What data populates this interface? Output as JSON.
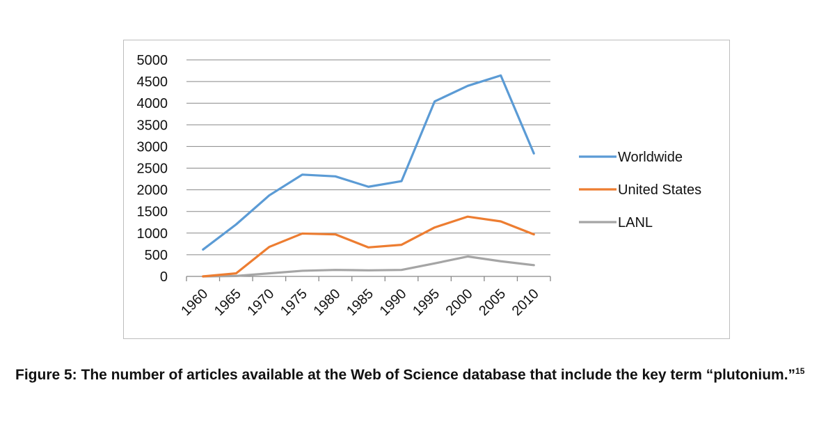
{
  "chart_data": {
    "type": "line",
    "categories": [
      "1960",
      "1965",
      "1970",
      "1975",
      "1980",
      "1985",
      "1990",
      "1995",
      "2000",
      "2005",
      "2010"
    ],
    "series": [
      {
        "name": "Worldwide",
        "color": "#5b9bd5",
        "values": [
          620,
          1200,
          1870,
          2350,
          2310,
          2070,
          2200,
          4040,
          4400,
          4640,
          2840
        ]
      },
      {
        "name": "United States",
        "color": "#ed7d31",
        "values": [
          0,
          70,
          680,
          990,
          970,
          670,
          730,
          1130,
          1380,
          1270,
          970
        ]
      },
      {
        "name": "LANL",
        "color": "#a5a5a5",
        "values": [
          0,
          10,
          70,
          130,
          150,
          140,
          150,
          300,
          460,
          350,
          260
        ]
      }
    ],
    "yticks": [
      "5000",
      "4500",
      "4000",
      "3500",
      "3000",
      "2500",
      "2000",
      "1500",
      "1000",
      "500",
      "0"
    ],
    "ylim": [
      0,
      5000
    ],
    "grid": true,
    "legend_position": "right"
  },
  "caption": {
    "text": "Figure 5: The number of articles available at the Web of Science database that include the key term “plutonium.”",
    "footnote": "15"
  }
}
